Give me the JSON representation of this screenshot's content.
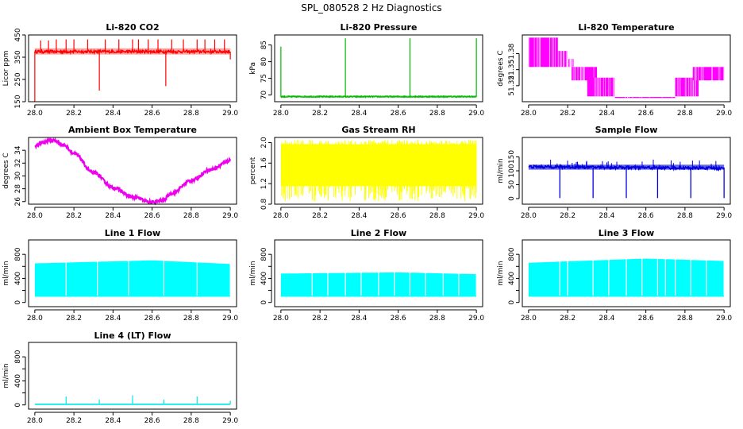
{
  "title": "SPL_080528  2 Hz Diagnostics",
  "chart_data": [
    {
      "id": "co2",
      "type": "line",
      "title": "Li-820 CO2",
      "xlabel": "",
      "ylabel": "Licor ppm",
      "color": "#ff0000",
      "xlim": [
        28.0,
        29.0
      ],
      "ylim": [
        150,
        450
      ],
      "xticks": [
        "28.0",
        "28.2",
        "28.4",
        "28.6",
        "28.8",
        "29.0"
      ],
      "yticks": [
        150,
        250,
        350,
        450
      ],
      "ytick_labels": [
        "150",
        "250",
        "350",
        "450"
      ],
      "series": [
        {
          "name": "CO2",
          "baseline": 375,
          "band_low": 362,
          "band_high": 390,
          "spikes": [
            [
              28.0,
              150
            ],
            [
              28.03,
              425
            ],
            [
              28.07,
              425
            ],
            [
              28.11,
              430
            ],
            [
              28.16,
              430
            ],
            [
              28.2,
              430
            ],
            [
              28.27,
              430
            ],
            [
              28.33,
              200
            ],
            [
              28.36,
              430
            ],
            [
              28.43,
              430
            ],
            [
              28.5,
              430
            ],
            [
              28.53,
              430
            ],
            [
              28.58,
              430
            ],
            [
              28.63,
              430
            ],
            [
              28.67,
              220
            ],
            [
              28.7,
              430
            ],
            [
              28.76,
              430
            ],
            [
              28.83,
              430
            ],
            [
              28.87,
              430
            ],
            [
              28.92,
              430
            ],
            [
              28.97,
              430
            ],
            [
              29.0,
              340
            ]
          ]
        }
      ]
    },
    {
      "id": "pressure",
      "type": "line",
      "title": "Li-820 Pressure",
      "xlabel": "",
      "ylabel": "kPa",
      "color": "#00bb00",
      "xlim": [
        28.0,
        29.0
      ],
      "ylim": [
        68,
        88
      ],
      "xticks": [
        "28.0",
        "28.2",
        "28.4",
        "28.6",
        "28.8",
        "29.0"
      ],
      "yticks": [
        70,
        75,
        80,
        85
      ],
      "ytick_labels": [
        "70",
        "75",
        "80",
        "85"
      ],
      "series": [
        {
          "name": "Pressure",
          "baseline": 69.5,
          "band_low": 69.2,
          "band_high": 69.9,
          "spikes": [
            [
              28.0,
              84.5
            ],
            [
              28.33,
              87
            ],
            [
              28.66,
              87
            ],
            [
              29.0,
              87
            ]
          ]
        }
      ]
    },
    {
      "id": "licor_temp",
      "type": "area",
      "title": "Li-820 Temperature",
      "xlabel": "",
      "ylabel": "degrees C",
      "color": "#ff00ff",
      "xlim": [
        28.0,
        29.0
      ],
      "ylim": [
        51.29,
        51.415
      ],
      "xticks": [
        "28.0",
        "28.2",
        "28.4",
        "28.6",
        "28.8",
        "29.0"
      ],
      "yticks": [
        51.32,
        51.35,
        51.38
      ],
      "ytick_labels": [
        "51.32",
        "51.35",
        "51.38"
      ],
      "series": [
        {
          "name": "Temperature",
          "bands": [
            [
              28.0,
              28.15,
              51.355,
              51.41
            ],
            [
              28.15,
              28.2,
              51.355,
              51.385
            ],
            [
              28.2,
              28.23,
              51.355,
              51.37
            ],
            [
              28.22,
              28.35,
              51.33,
              51.355
            ],
            [
              28.3,
              28.44,
              51.3,
              51.335
            ],
            [
              28.44,
              28.75,
              51.297,
              51.299
            ],
            [
              28.75,
              28.87,
              51.3,
              51.335
            ],
            [
              28.84,
              29.0,
              51.33,
              51.355
            ]
          ]
        }
      ]
    },
    {
      "id": "box_temp",
      "type": "line",
      "title": "Ambient Box Temperature",
      "xlabel": "",
      "ylabel": "degrees C",
      "color": "#ee00ee",
      "xlim": [
        28.0,
        29.0
      ],
      "ylim": [
        25.6,
        36.0
      ],
      "xticks": [
        "28.0",
        "28.2",
        "28.4",
        "28.6",
        "28.8",
        "29.0"
      ],
      "yticks": [
        26,
        28,
        30,
        32,
        34
      ],
      "ytick_labels": [
        "26",
        "28",
        "30",
        "32",
        "34"
      ],
      "series": [
        {
          "name": "Box Temperature",
          "x": [
            28.0,
            28.05,
            28.08,
            28.1,
            28.15,
            28.2,
            28.3,
            28.4,
            28.5,
            28.6,
            28.65,
            28.7,
            28.8,
            28.9,
            29.0
          ],
          "y": [
            34.7,
            35.3,
            35.6,
            35.5,
            34.8,
            33.5,
            30.5,
            28.2,
            26.7,
            25.9,
            26.1,
            27.3,
            29.3,
            31.0,
            32.4
          ]
        }
      ]
    },
    {
      "id": "rh",
      "type": "area",
      "title": "Gas Stream RH",
      "xlabel": "",
      "ylabel": "percent",
      "color": "#ffff00",
      "xlim": [
        28.0,
        29.0
      ],
      "ylim": [
        0.8,
        2.1
      ],
      "xticks": [
        "28.0",
        "28.2",
        "28.4",
        "28.6",
        "28.8",
        "29.0"
      ],
      "yticks": [
        0.8,
        1.2,
        1.6,
        2.0
      ],
      "ytick_labels": [
        "0.8",
        "1.2",
        "1.6",
        "2.0"
      ],
      "series": [
        {
          "name": "RH",
          "low_mean": 1.15,
          "high_mean": 1.97,
          "min": 0.85,
          "max": 2.05
        }
      ]
    },
    {
      "id": "sample_flow",
      "type": "line",
      "title": "Sample Flow",
      "xlabel": "",
      "ylabel": "ml/min",
      "color": "#0000dd",
      "xlim": [
        28.0,
        29.0
      ],
      "ylim": [
        -20,
        220
      ],
      "xticks": [
        "28.0",
        "28.2",
        "28.4",
        "28.6",
        "28.8",
        "29.0"
      ],
      "yticks": [
        0,
        50,
        100,
        150
      ],
      "ytick_labels": [
        "0",
        "50",
        "100",
        "150"
      ],
      "series": [
        {
          "name": "Sample Flow",
          "baseline": 112,
          "band_low": 104,
          "band_high": 122,
          "dips": [
            28.16,
            28.33,
            28.5,
            28.66,
            28.83,
            29.0
          ],
          "dip_value": 2,
          "spike_value": 140
        }
      ]
    },
    {
      "id": "line1",
      "type": "area",
      "title": "Line 1 Flow",
      "xlabel": "",
      "ylabel": "ml/min",
      "color": "#00ffff",
      "xlim": [
        28.0,
        29.0
      ],
      "ylim": [
        -70,
        1040
      ],
      "xticks": [
        "28.0",
        "28.2",
        "28.4",
        "28.6",
        "28.8",
        "29.0"
      ],
      "yticks": [
        0,
        200,
        400,
        600,
        800
      ],
      "ytick_labels": [
        "0",
        "",
        "400",
        "",
        "800"
      ],
      "series": [
        {
          "name": "Line 1",
          "low": 95,
          "high_start": 650,
          "high_peak": 700,
          "high_end": 640,
          "gaps": [
            28.16,
            28.32,
            28.48,
            28.66,
            28.83,
            29.0
          ]
        }
      ]
    },
    {
      "id": "line2",
      "type": "area",
      "title": "Line 2 Flow",
      "xlabel": "",
      "ylabel": "ml/min",
      "color": "#00ffff",
      "xlim": [
        28.0,
        29.0
      ],
      "ylim": [
        -70,
        1040
      ],
      "xticks": [
        "28.0",
        "28.2",
        "28.4",
        "28.6",
        "28.8",
        "29.0"
      ],
      "yticks": [
        0,
        200,
        400,
        600,
        800
      ],
      "ytick_labels": [
        "0",
        "",
        "400",
        "",
        "800"
      ],
      "series": [
        {
          "name": "Line 2",
          "low": 95,
          "high_start": 480,
          "high_peak": 500,
          "high_end": 470,
          "gaps": [
            28.16,
            28.24,
            28.33,
            28.41,
            28.5,
            28.58,
            28.66,
            28.74,
            28.83,
            28.91,
            29.0
          ]
        }
      ]
    },
    {
      "id": "line3",
      "type": "area",
      "title": "Line 3 Flow",
      "xlabel": "",
      "ylabel": "ml/min",
      "color": "#00ffff",
      "xlim": [
        28.0,
        29.0
      ],
      "ylim": [
        -70,
        1040
      ],
      "xticks": [
        "28.0",
        "28.2",
        "28.4",
        "28.6",
        "28.8",
        "29.0"
      ],
      "yticks": [
        0,
        200,
        400,
        600,
        800
      ],
      "ytick_labels": [
        "0",
        "",
        "400",
        "",
        "800"
      ],
      "series": [
        {
          "name": "Line 3",
          "low": 95,
          "high_start": 660,
          "high_peak": 730,
          "high_end": 690,
          "gaps": [
            28.16,
            28.2,
            28.33,
            28.41,
            28.5,
            28.58,
            28.66,
            28.7,
            28.75,
            28.83,
            28.91,
            29.0
          ]
        }
      ]
    },
    {
      "id": "line4",
      "type": "line",
      "title": "Line 4 (LT) Flow",
      "xlabel": "",
      "ylabel": "ml/min",
      "color": "#00e8e8",
      "xlim": [
        28.0,
        29.0
      ],
      "ylim": [
        -70,
        1040
      ],
      "xticks": [
        "28.0",
        "28.2",
        "28.4",
        "28.6",
        "28.8",
        "29.0"
      ],
      "yticks": [
        0,
        200,
        400,
        600,
        800
      ],
      "ytick_labels": [
        "0",
        "",
        "400",
        "",
        "800"
      ],
      "series": [
        {
          "name": "Line 4",
          "baseline": 10,
          "spikes": [
            [
              28.16,
              140
            ],
            [
              28.33,
              90
            ],
            [
              28.5,
              160
            ],
            [
              28.66,
              90
            ],
            [
              28.83,
              140
            ],
            [
              29.0,
              70
            ]
          ]
        }
      ]
    }
  ]
}
